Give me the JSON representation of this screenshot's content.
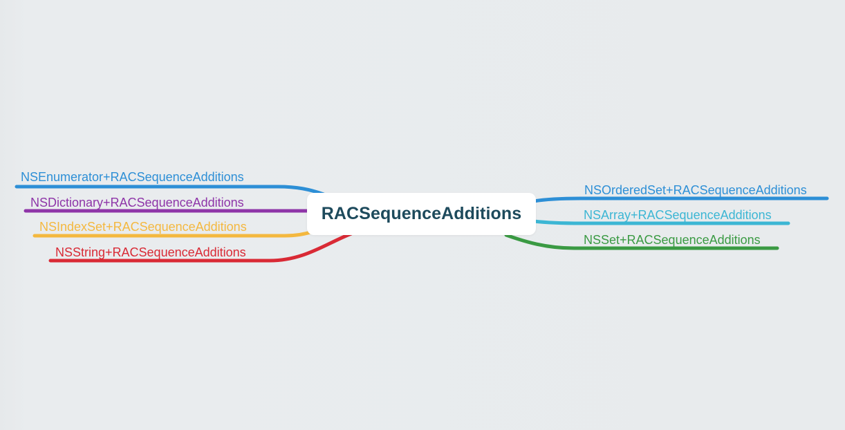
{
  "central_topic": {
    "label": "RACSequenceAdditions",
    "color": "#1d4a5c"
  },
  "left_branches": [
    {
      "label": "NSEnumerator+RACSequenceAdditions",
      "color": "#2d8fd6"
    },
    {
      "label": "NSDictionary+RACSequenceAdditions",
      "color": "#8e35a8"
    },
    {
      "label": "NSIndexSet+RACSequenceAdditions",
      "color": "#f4b83f"
    },
    {
      "label": "NSString+RACSequenceAdditions",
      "color": "#d92a35"
    }
  ],
  "right_branches": [
    {
      "label": "NSOrderedSet+RACSequenceAdditions",
      "color": "#2d8fd6"
    },
    {
      "label": "NSArray+RACSequenceAdditions",
      "color": "#3cb6d4"
    },
    {
      "label": "NSSet+RACSequenceAdditions",
      "color": "#3a9a43"
    }
  ]
}
